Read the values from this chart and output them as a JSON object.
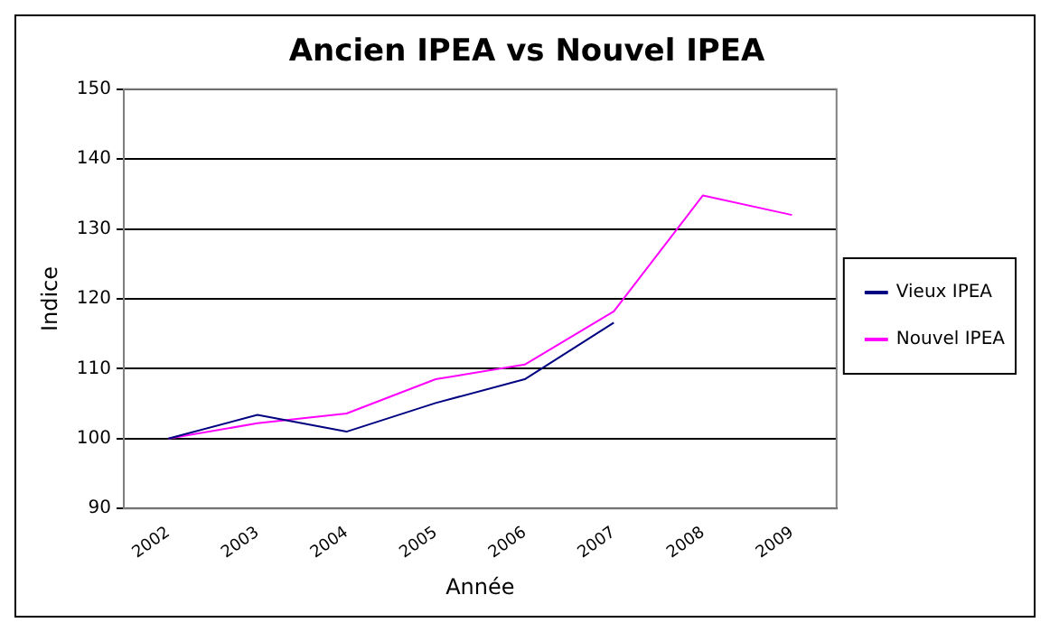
{
  "chart_data": {
    "type": "line",
    "title": "Ancien IPEA vs Nouvel IPEA",
    "xlabel": "Année",
    "ylabel": "Indice",
    "categories": [
      "2002",
      "2003",
      "2004",
      "2005",
      "2006",
      "2007",
      "2008",
      "2009"
    ],
    "series": [
      {
        "name": "Vieux IPEA",
        "color": "#000080",
        "values": [
          100,
          103.4,
          101,
          105.1,
          108.5,
          116.6,
          null,
          null
        ]
      },
      {
        "name": "Nouvel IPEA",
        "color": "#ff00ff",
        "values": [
          100,
          102.2,
          103.6,
          108.5,
          110.6,
          118.2,
          134.8,
          132
        ]
      }
    ],
    "ylim": [
      90,
      150
    ],
    "yticks": [
      90,
      100,
      110,
      120,
      130,
      140,
      150
    ],
    "grid": "y",
    "legend": "right",
    "marker": "none",
    "line_style": "solid"
  }
}
